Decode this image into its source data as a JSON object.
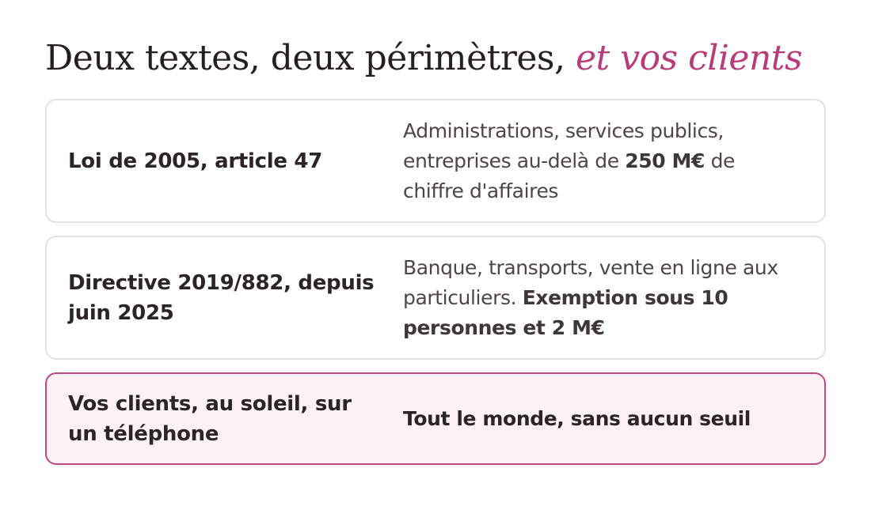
{
  "title": {
    "main": "Deux textes, deux périmètres, ",
    "accent": "et vos clients"
  },
  "rows": [
    {
      "label": "Loi de 2005, article 47",
      "desc_pre": "Administrations, services publics, entreprises au-delà de ",
      "desc_bold": "250 M€",
      "desc_post": " de chiffre d'affaires"
    },
    {
      "label": "Directive 2019/882, depuis juin 2025",
      "desc_pre": "Banque, transports, vente en ligne aux particuliers. ",
      "desc_bold": "Exemption sous 10 personnes et 2 M€",
      "desc_post": ""
    },
    {
      "label": "Vos clients, au soleil, sur un téléphone",
      "desc": "Tout le monde, sans aucun seuil"
    }
  ],
  "colors": {
    "accent": "#b83b7a",
    "highlight_bg": "#fdf1f5",
    "highlight_border": "#be4a80",
    "card_border": "#e3e1e2"
  }
}
